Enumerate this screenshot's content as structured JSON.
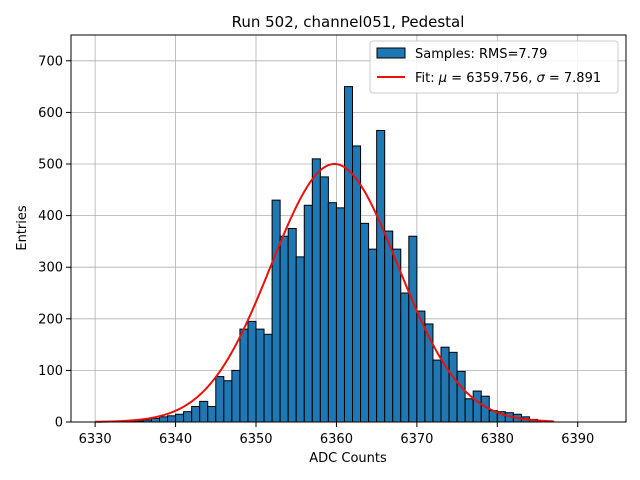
{
  "chart_data": {
    "type": "bar",
    "title": "Run 502, channel051, Pedestal",
    "xlabel": "ADC Counts",
    "ylabel": "Entries",
    "xlim": [
      6327,
      6396
    ],
    "ylim": [
      0,
      750
    ],
    "xticks": [
      6330,
      6340,
      6350,
      6360,
      6370,
      6380,
      6390
    ],
    "yticks": [
      0,
      100,
      200,
      300,
      400,
      500,
      600,
      700
    ],
    "grid": true,
    "legend_placement": "top-right",
    "bin_width": 1,
    "histogram": {
      "name": "Samples: RMS=7.79",
      "color": "#1f77b4",
      "edge_color": "#000000",
      "bin_starts": [
        6334,
        6335,
        6336,
        6337,
        6338,
        6339,
        6340,
        6341,
        6342,
        6343,
        6344,
        6345,
        6346,
        6347,
        6348,
        6349,
        6350,
        6351,
        6352,
        6353,
        6354,
        6355,
        6356,
        6357,
        6358,
        6359,
        6360,
        6361,
        6362,
        6363,
        6364,
        6365,
        6366,
        6367,
        6368,
        6369,
        6370,
        6371,
        6372,
        6373,
        6374,
        6375,
        6376,
        6377,
        6378,
        6379,
        6380,
        6381,
        6382,
        6383,
        6384,
        6385,
        6386
      ],
      "values": [
        1,
        2,
        4,
        7,
        10,
        12,
        15,
        20,
        30,
        40,
        30,
        88,
        80,
        100,
        180,
        195,
        180,
        170,
        430,
        360,
        375,
        320,
        420,
        510,
        475,
        425,
        415,
        650,
        535,
        385,
        335,
        565,
        370,
        335,
        250,
        360,
        215,
        190,
        120,
        145,
        135,
        98,
        45,
        60,
        50,
        22,
        20,
        18,
        15,
        10,
        5,
        3,
        1
      ]
    },
    "fit": {
      "name_prefix": "Fit: ",
      "mu_symbol": "μ",
      "mu_text": " = 6359.756, ",
      "sigma_symbol": "σ",
      "sigma_text": " = 7.891",
      "mu": 6359.756,
      "sigma": 7.891,
      "amplitude": 500,
      "x_range": [
        6330,
        6387
      ],
      "color": "#e8120c"
    }
  }
}
